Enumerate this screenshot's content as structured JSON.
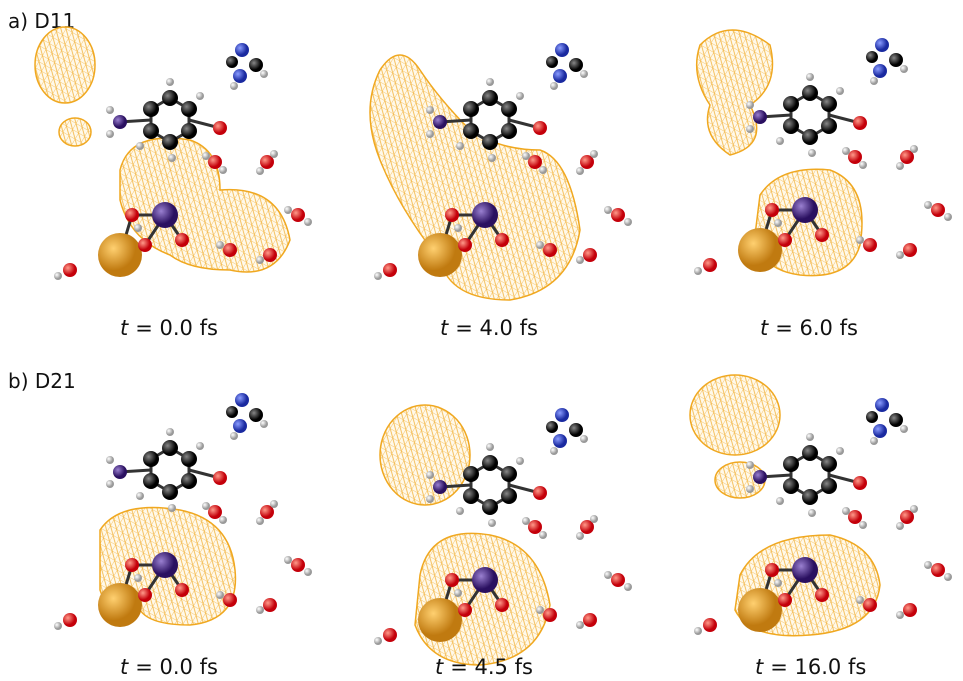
{
  "panels": [
    {
      "label": "a) D11",
      "frames": [
        {
          "variable": "t",
          "text": "= 0.0 fs"
        },
        {
          "variable": "t",
          "text": "= 4.0 fs"
        },
        {
          "variable": "t",
          "text": "= 6.0 fs"
        }
      ]
    },
    {
      "label": "b) D21",
      "frames": [
        {
          "variable": "t",
          "text": "= 0.0 fs"
        },
        {
          "variable": "t",
          "text": "= 4.5 fs"
        },
        {
          "variable": "t",
          "text": "= 16.0 fs"
        }
      ]
    }
  ]
}
